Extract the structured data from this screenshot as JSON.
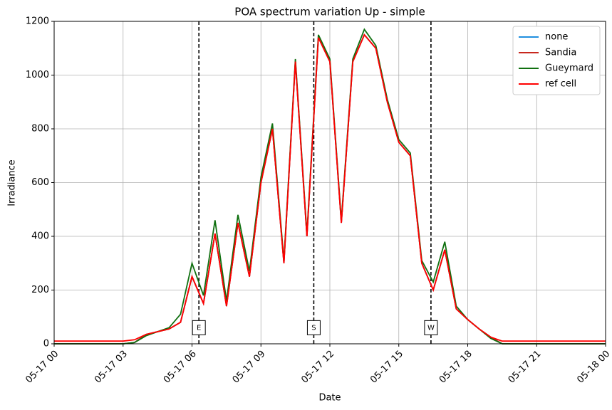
{
  "chart_data": {
    "type": "line",
    "title": "POA spectrum variation Up - simple",
    "x_label": "Date",
    "y_label": "Irradiance",
    "x": [
      0,
      3,
      3.5,
      4,
      4.5,
      5,
      5.5,
      6,
      6.5,
      7,
      7.5,
      8,
      8.5,
      9,
      9.5,
      10,
      10.5,
      11,
      11.5,
      12,
      12.5,
      13,
      13.5,
      14,
      14.5,
      15,
      15.5,
      16,
      16.5,
      17,
      17.5,
      18,
      18.5,
      19,
      19.5,
      20,
      24
    ],
    "series": [
      {
        "name": "none",
        "color": "#1f8fdf",
        "values": [
          0,
          0,
          5,
          35,
          45,
          55,
          80,
          250,
          150,
          410,
          140,
          450,
          250,
          600,
          800,
          300,
          1050,
          400,
          1140,
          1050,
          450,
          1050,
          1150,
          1100,
          900,
          750,
          700,
          300,
          200,
          350,
          130,
          90,
          55,
          25,
          0,
          0,
          0
        ]
      },
      {
        "name": "Sandia",
        "color": "#c8281e",
        "values": [
          0,
          0,
          5,
          35,
          45,
          55,
          80,
          250,
          150,
          410,
          140,
          450,
          250,
          600,
          800,
          300,
          1050,
          400,
          1140,
          1050,
          450,
          1050,
          1150,
          1100,
          900,
          750,
          700,
          300,
          200,
          350,
          130,
          90,
          55,
          25,
          0,
          0,
          0
        ]
      },
      {
        "name": "Gueymard",
        "color": "#107010",
        "values": [
          0,
          0,
          5,
          30,
          45,
          60,
          110,
          300,
          180,
          460,
          160,
          480,
          270,
          620,
          820,
          310,
          1060,
          410,
          1150,
          1060,
          460,
          1060,
          1170,
          1110,
          910,
          760,
          710,
          310,
          230,
          380,
          140,
          90,
          55,
          20,
          0,
          0,
          0
        ]
      },
      {
        "name": "ref cell",
        "color": "#ff0000",
        "values": [
          10,
          10,
          15,
          35,
          45,
          55,
          80,
          250,
          150,
          410,
          140,
          450,
          250,
          600,
          800,
          300,
          1050,
          400,
          1140,
          1050,
          450,
          1050,
          1150,
          1100,
          900,
          750,
          700,
          300,
          200,
          350,
          130,
          90,
          55,
          25,
          10,
          10,
          10
        ]
      }
    ],
    "annotations": [
      {
        "label": "E",
        "x": 6.3,
        "y": 60
      },
      {
        "label": "S",
        "x": 11.3,
        "y": 60
      },
      {
        "label": "W",
        "x": 16.4,
        "y": 60
      }
    ],
    "xlim": [
      0,
      24
    ],
    "ylim": [
      0,
      1200
    ],
    "xticks": [
      {
        "value": 0,
        "label": "05-17 00"
      },
      {
        "value": 3,
        "label": "05-17 03"
      },
      {
        "value": 6,
        "label": "05-17 06"
      },
      {
        "value": 9,
        "label": "05-17 09"
      },
      {
        "value": 12,
        "label": "05-17 12"
      },
      {
        "value": 15,
        "label": "05-17 15"
      },
      {
        "value": 18,
        "label": "05-17 18"
      },
      {
        "value": 21,
        "label": "05-17 21"
      },
      {
        "value": 24,
        "label": "05-18 00"
      }
    ],
    "yticks": [
      0,
      200,
      400,
      600,
      800,
      1000,
      1200
    ],
    "grid": true,
    "legend": "upper right"
  }
}
